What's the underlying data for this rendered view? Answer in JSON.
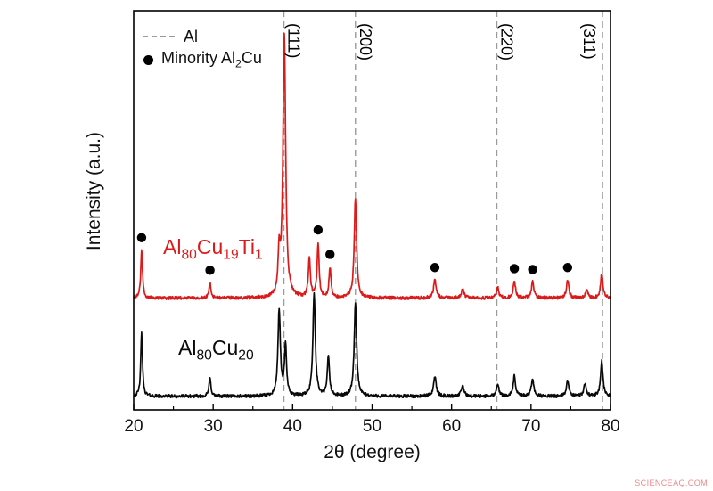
{
  "figure": {
    "background": "#ffffff"
  },
  "watermark": {
    "text": "SCIENCEAQ.COM",
    "color": "#f08a8a"
  },
  "chart_data": {
    "type": "line",
    "title": "",
    "xlabel": "2θ (degree)",
    "ylabel": "Intensity (a.u.)",
    "xlim": [
      20,
      80
    ],
    "x_ticks": [
      20,
      30,
      40,
      50,
      60,
      70,
      80
    ],
    "x_minor_step": 5,
    "ylim": [
      0,
      1
    ],
    "grid": false,
    "legend_position": "top-left",
    "al_reference": {
      "legend_label": "Al",
      "line_style": "dashed",
      "line_color": "#9b9b9b",
      "peaks": [
        {
          "two_theta": 38.9,
          "hkl": "(111)",
          "label_side": "right"
        },
        {
          "two_theta": 47.9,
          "hkl": "(200)",
          "label_side": "right"
        },
        {
          "two_theta": 65.7,
          "hkl": "(220)",
          "label_side": "right"
        },
        {
          "two_theta": 79.0,
          "hkl": "(311)",
          "label_side": "left"
        }
      ]
    },
    "minority_phase": {
      "legend_label": "Minority Al~2~Cu",
      "marker": "filled-circle",
      "marker_color": "#000000",
      "marker_positions": [
        21.0,
        29.6,
        43.2,
        44.7,
        57.9,
        67.9,
        70.2,
        74.6
      ]
    },
    "series": [
      {
        "name": "Al~80~Cu~19~Ti~1~",
        "color": "#dd1a1a",
        "baseline_offset": 0.28,
        "peaks": [
          {
            "x": 21.0,
            "h": 0.12,
            "w": 0.13
          },
          {
            "x": 29.6,
            "h": 0.038,
            "w": 0.15
          },
          {
            "x": 38.3,
            "h": 0.1,
            "w": 0.15
          },
          {
            "x": 38.95,
            "h": 0.66,
            "w": 0.2
          },
          {
            "x": 42.1,
            "h": 0.1,
            "w": 0.15
          },
          {
            "x": 43.2,
            "h": 0.135,
            "w": 0.15
          },
          {
            "x": 44.7,
            "h": 0.075,
            "w": 0.15
          },
          {
            "x": 47.9,
            "h": 0.25,
            "w": 0.18
          },
          {
            "x": 57.9,
            "h": 0.045,
            "w": 0.2
          },
          {
            "x": 61.4,
            "h": 0.022,
            "w": 0.2
          },
          {
            "x": 65.8,
            "h": 0.028,
            "w": 0.18
          },
          {
            "x": 67.9,
            "h": 0.042,
            "w": 0.18
          },
          {
            "x": 70.2,
            "h": 0.04,
            "w": 0.18
          },
          {
            "x": 74.6,
            "h": 0.045,
            "w": 0.18
          },
          {
            "x": 77.0,
            "h": 0.02,
            "w": 0.18
          },
          {
            "x": 78.9,
            "h": 0.06,
            "w": 0.18
          }
        ]
      },
      {
        "name": "Al~80~Cu~20~",
        "color": "#0a0a0a",
        "baseline_offset": 0.034,
        "peaks": [
          {
            "x": 21.0,
            "h": 0.16,
            "w": 0.13
          },
          {
            "x": 29.6,
            "h": 0.045,
            "w": 0.15
          },
          {
            "x": 38.3,
            "h": 0.215,
            "w": 0.18
          },
          {
            "x": 39.1,
            "h": 0.125,
            "w": 0.16
          },
          {
            "x": 42.7,
            "h": 0.26,
            "w": 0.18
          },
          {
            "x": 44.5,
            "h": 0.1,
            "w": 0.16
          },
          {
            "x": 47.9,
            "h": 0.235,
            "w": 0.18
          },
          {
            "x": 57.9,
            "h": 0.05,
            "w": 0.2
          },
          {
            "x": 61.4,
            "h": 0.027,
            "w": 0.2
          },
          {
            "x": 65.8,
            "h": 0.032,
            "w": 0.18
          },
          {
            "x": 67.9,
            "h": 0.05,
            "w": 0.18
          },
          {
            "x": 70.2,
            "h": 0.045,
            "w": 0.18
          },
          {
            "x": 74.6,
            "h": 0.04,
            "w": 0.18
          },
          {
            "x": 76.8,
            "h": 0.033,
            "w": 0.18
          },
          {
            "x": 78.9,
            "h": 0.088,
            "w": 0.18
          }
        ]
      }
    ]
  }
}
